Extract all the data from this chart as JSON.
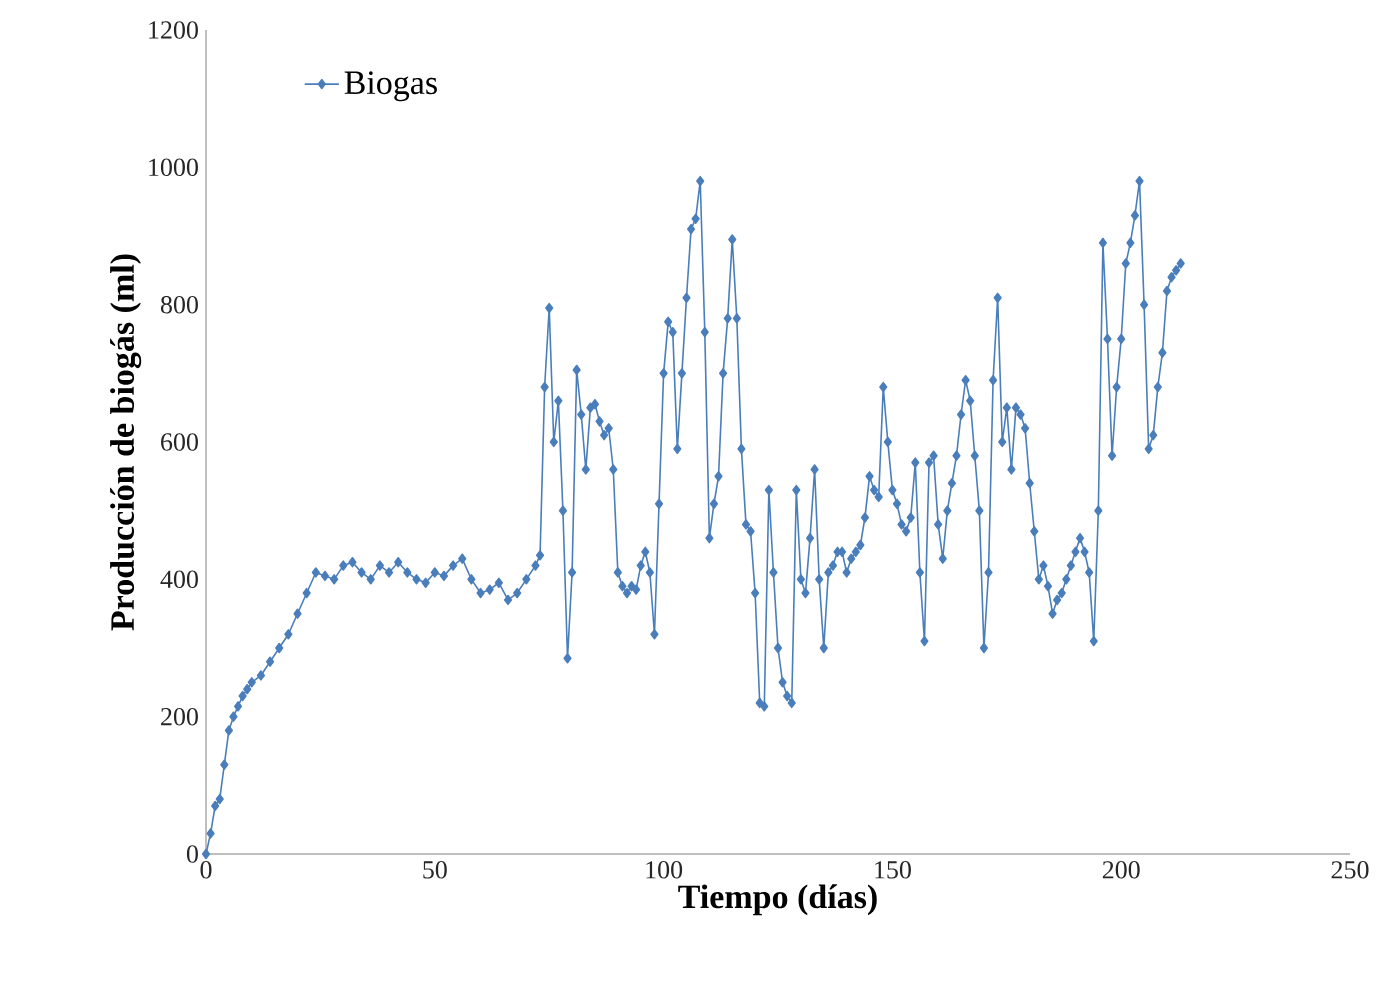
{
  "chart_data": {
    "type": "line",
    "xlabel": "Tiempo (días)",
    "ylabel": "Producción de biogás (ml)",
    "xlim": [
      0,
      250
    ],
    "ylim": [
      0,
      1200
    ],
    "xticks": [
      0,
      50,
      100,
      150,
      200,
      250
    ],
    "yticks": [
      0,
      200,
      400,
      600,
      800,
      1000,
      1200
    ],
    "legend": "top left",
    "marker": "diamond",
    "grid": false,
    "series": [
      {
        "name": "Biogas",
        "color": "#4a7ebb",
        "x": [
          0,
          1,
          2,
          3,
          4,
          5,
          6,
          7,
          8,
          9,
          10,
          12,
          14,
          16,
          18,
          20,
          22,
          24,
          26,
          28,
          30,
          32,
          34,
          36,
          38,
          40,
          42,
          44,
          46,
          48,
          50,
          52,
          54,
          56,
          58,
          60,
          62,
          64,
          66,
          68,
          70,
          72,
          73,
          74,
          75,
          76,
          77,
          78,
          79,
          80,
          81,
          82,
          83,
          84,
          85,
          86,
          87,
          88,
          89,
          90,
          91,
          92,
          93,
          94,
          95,
          96,
          97,
          98,
          99,
          100,
          101,
          102,
          103,
          104,
          105,
          106,
          107,
          108,
          109,
          110,
          111,
          112,
          113,
          114,
          115,
          116,
          117,
          118,
          119,
          120,
          121,
          122,
          123,
          124,
          125,
          126,
          127,
          128,
          129,
          130,
          131,
          132,
          133,
          134,
          135,
          136,
          137,
          138,
          139,
          140,
          141,
          142,
          143,
          144,
          145,
          146,
          147,
          148,
          149,
          150,
          151,
          152,
          153,
          154,
          155,
          156,
          157,
          158,
          159,
          160,
          161,
          162,
          163,
          164,
          165,
          166,
          167,
          168,
          169,
          170,
          171,
          172,
          173,
          174,
          175,
          176,
          177,
          178,
          179,
          180,
          181,
          182,
          183,
          184,
          185,
          186,
          187,
          188,
          189,
          190,
          191,
          192,
          193,
          194,
          195,
          196,
          197,
          198,
          199,
          200,
          201,
          202,
          203,
          204,
          205,
          206,
          207,
          208,
          209,
          210,
          211,
          212,
          213
        ],
        "values": [
          0,
          30,
          70,
          80,
          130,
          180,
          200,
          215,
          230,
          240,
          250,
          260,
          280,
          300,
          320,
          350,
          380,
          410,
          405,
          400,
          420,
          425,
          410,
          400,
          420,
          410,
          425,
          410,
          400,
          395,
          410,
          405,
          420,
          430,
          400,
          380,
          385,
          395,
          370,
          380,
          400,
          420,
          435,
          680,
          795,
          600,
          660,
          500,
          285,
          410,
          705,
          640,
          560,
          650,
          655,
          630,
          610,
          620,
          560,
          410,
          390,
          380,
          390,
          385,
          420,
          440,
          410,
          320,
          510,
          700,
          775,
          760,
          590,
          700,
          810,
          910,
          925,
          980,
          760,
          460,
          510,
          550,
          700,
          780,
          895,
          780,
          590,
          480,
          470,
          380,
          220,
          215,
          530,
          410,
          300,
          250,
          230,
          220,
          530,
          400,
          380,
          460,
          560,
          400,
          300,
          410,
          420,
          440,
          440,
          410,
          430,
          440,
          450,
          490,
          550,
          530,
          520,
          680,
          600,
          530,
          510,
          480,
          470,
          490,
          570,
          410,
          310,
          570,
          580,
          480,
          430,
          500,
          540,
          580,
          640,
          690,
          660,
          580,
          500,
          300,
          410,
          690,
          810,
          600,
          650,
          560,
          650,
          640,
          620,
          540,
          470,
          400,
          420,
          390,
          350,
          370,
          380,
          400,
          420,
          440,
          460,
          440,
          410,
          310,
          500,
          890,
          750,
          580,
          680,
          750,
          860,
          890,
          930,
          980,
          800,
          590,
          610,
          680,
          730,
          820,
          840,
          850,
          860
        ]
      }
    ]
  }
}
